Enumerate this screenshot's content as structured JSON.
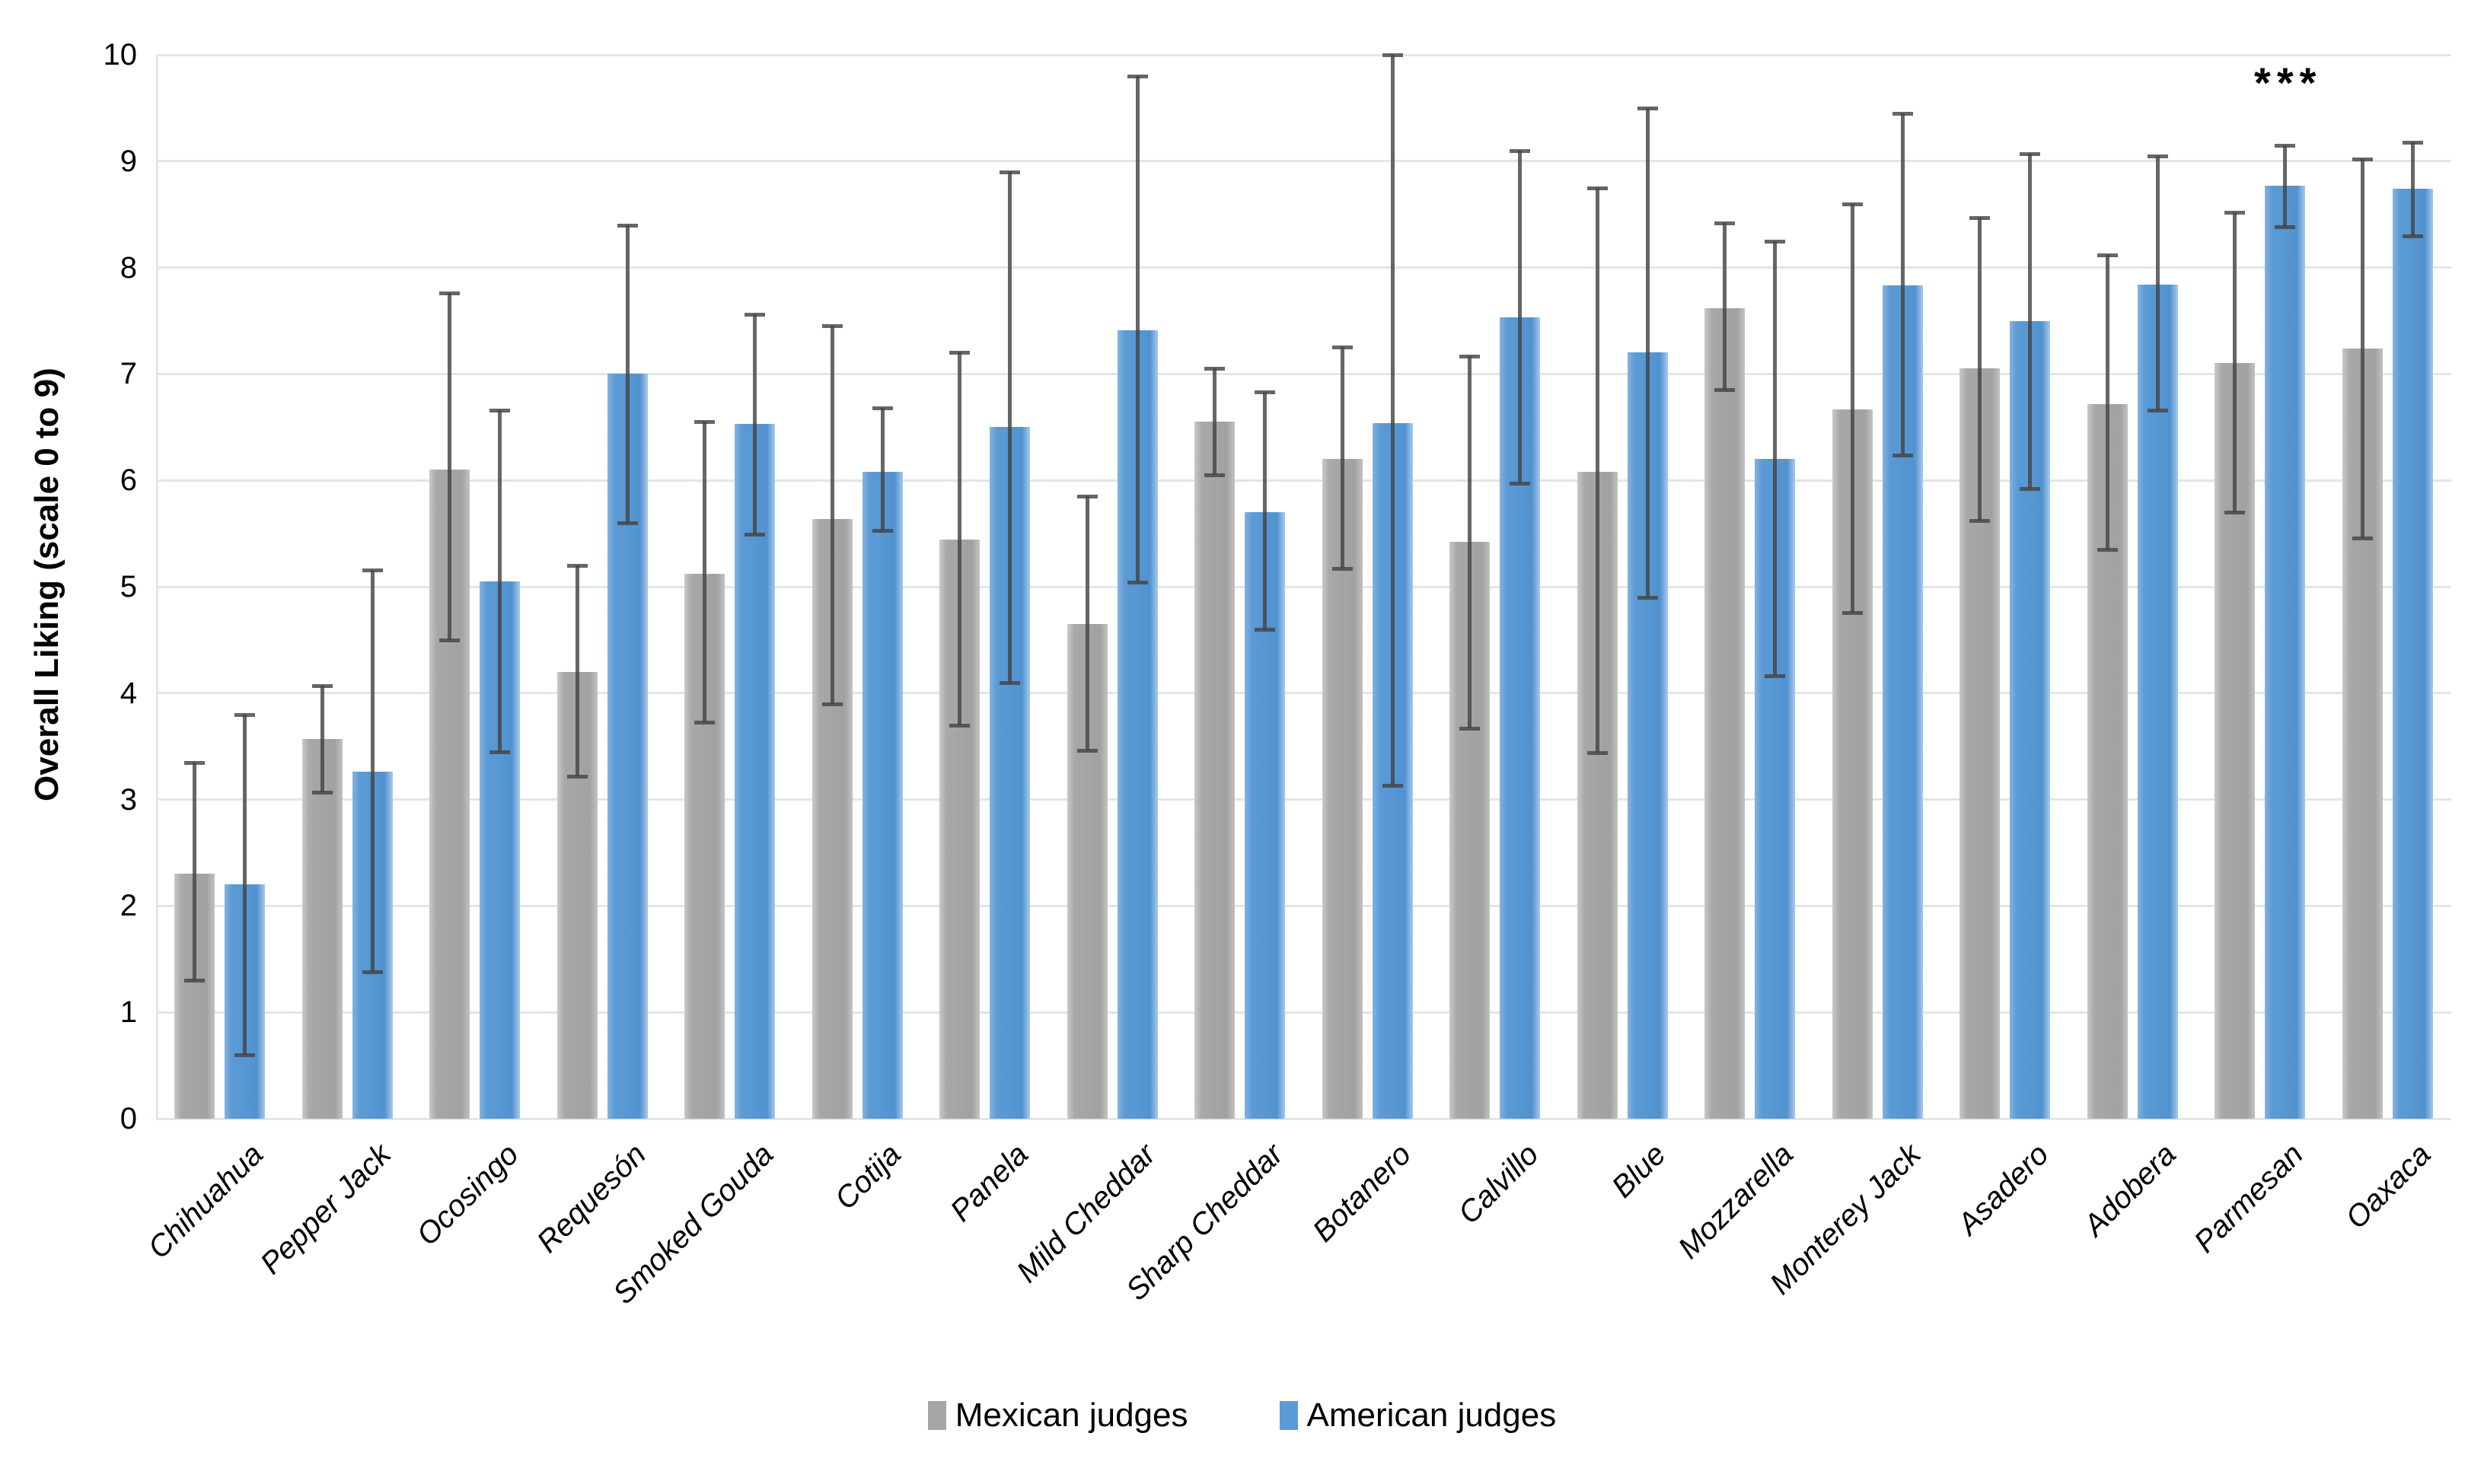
{
  "y_axis": {
    "title": "Overall Liking (scale 0 to 9)",
    "min": 0,
    "max": 10,
    "ticks": [
      0,
      1,
      2,
      3,
      4,
      5,
      6,
      7,
      8,
      9,
      10
    ]
  },
  "legend": {
    "items": [
      {
        "label": "Mexican judges",
        "color": "#a6a6a6"
      },
      {
        "label": "American judges",
        "color": "#5b9bd5"
      }
    ]
  },
  "colors": {
    "mexican_bar": "#a6a6a6",
    "american_bar": "#5b9bd5",
    "gridline": "#dfe6ed",
    "error_bar": "#444444"
  },
  "chart_data": {
    "type": "bar",
    "title": "",
    "xlabel": "",
    "ylabel": "Overall Liking (scale 0 to 9)",
    "ylim": [
      0,
      10
    ],
    "grid": true,
    "legend_position": "bottom",
    "error_bars": true,
    "categories": [
      "Chihuahua",
      "Pepper Jack",
      "Ocosingo",
      "Requesón",
      "Smoked Gouda",
      "Cotija",
      "Panela",
      "Mild Cheddar",
      "Sharp Cheddar",
      "Botanero",
      "Calvillo",
      "Blue",
      "Mozzarella",
      "Monterey Jack",
      "Asadero",
      "Adobera",
      "Parmesan",
      "Oaxaca"
    ],
    "series": [
      {
        "name": "Mexican judges",
        "color": "#a6a6a6",
        "values": [
          2.3,
          3.57,
          6.1,
          4.2,
          5.12,
          5.64,
          5.44,
          4.65,
          6.55,
          6.2,
          5.42,
          6.08,
          7.62,
          6.67,
          7.05,
          6.72,
          7.1,
          7.24
        ],
        "error_low": [
          1.3,
          3.07,
          4.5,
          3.22,
          3.73,
          3.9,
          3.7,
          3.46,
          6.05,
          5.17,
          3.67,
          3.44,
          6.85,
          4.76,
          5.62,
          5.35,
          5.7,
          5.46
        ],
        "error_high": [
          3.35,
          4.07,
          7.76,
          5.2,
          6.55,
          7.45,
          7.2,
          5.85,
          7.05,
          7.25,
          7.17,
          8.75,
          8.42,
          8.6,
          8.47,
          8.12,
          8.52,
          9.02
        ]
      },
      {
        "name": "American judges",
        "color": "#5b9bd5",
        "values": [
          2.2,
          3.26,
          5.05,
          7.0,
          6.53,
          6.08,
          6.5,
          7.41,
          5.7,
          6.54,
          7.53,
          7.2,
          6.2,
          7.83,
          7.5,
          7.84,
          8.77,
          8.74
        ],
        "error_low": [
          0.6,
          1.38,
          3.45,
          5.6,
          5.49,
          5.53,
          4.1,
          5.04,
          4.6,
          3.13,
          5.97,
          4.9,
          4.16,
          6.24,
          5.92,
          6.66,
          8.38,
          8.3
        ],
        "error_high": [
          3.8,
          5.16,
          6.66,
          8.4,
          7.56,
          6.68,
          8.9,
          9.8,
          6.83,
          10.0,
          9.1,
          9.5,
          8.25,
          9.45,
          9.07,
          9.05,
          9.15,
          9.18
        ]
      }
    ],
    "annotations": [
      {
        "text": "***",
        "category": "Parmesan",
        "series": "American judges"
      }
    ]
  }
}
